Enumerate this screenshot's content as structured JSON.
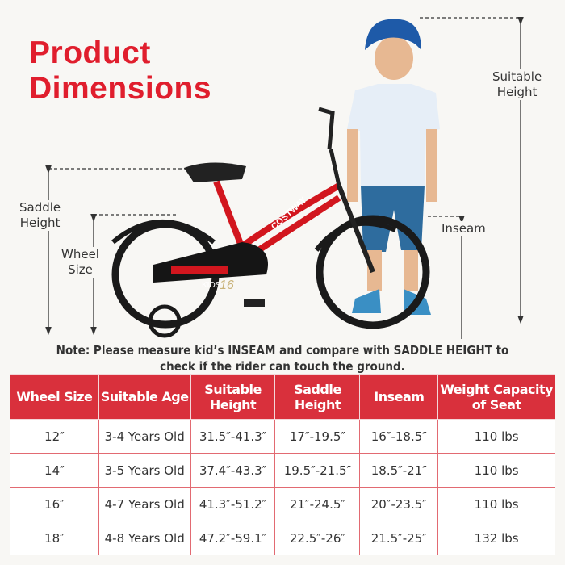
{
  "title": {
    "line1": "Product",
    "line2": "Dimensions"
  },
  "labels": {
    "suitable_height": [
      "Suitable",
      "Height"
    ],
    "saddle_height": [
      "Saddle",
      "Height"
    ],
    "wheel_size": [
      "Wheel",
      "Size"
    ],
    "inseam": "Inseam"
  },
  "bike": {
    "brand": "COSTWAY",
    "model": "KIDS",
    "size": "16"
  },
  "note": {
    "line1": "Note: Please measure kid’s INSEAM and compare with SADDLE HEIGHT to",
    "line2": "check if the rider can touch the ground."
  },
  "table": {
    "headers": [
      "Wheel Size",
      "Suitable Age",
      "Suitable Height",
      "Saddle Height",
      "Inseam",
      "Weight Capacity of Seat"
    ],
    "rows": [
      [
        "12″",
        "3-4 Years Old",
        "31.5″-41.3″",
        "17″-19.5″",
        "16″-18.5″",
        "110 lbs"
      ],
      [
        "14″",
        "3-5 Years Old",
        "37.4″-43.3″",
        "19.5″-21.5″",
        "18.5″-21″",
        "110 lbs"
      ],
      [
        "16″",
        "4-7 Years Old",
        "41.3″-51.2″",
        "21″-24.5″",
        "20″-23.5″",
        "110 lbs"
      ],
      [
        "18″",
        "4-8 Years Old",
        "47.2″-59.1″",
        "22.5″-26″",
        "21.5″-25″",
        "132 lbs"
      ]
    ]
  },
  "colors": {
    "accent": "#e01e2d",
    "header": "#d9303c",
    "bike_frame": "#d2161e"
  }
}
